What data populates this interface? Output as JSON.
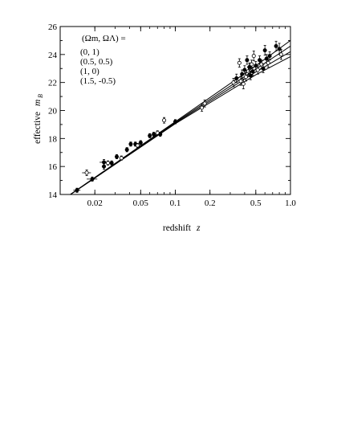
{
  "chart_data": {
    "type": "scatter",
    "title": "",
    "xlabel": "redshift",
    "xlabel_symbol": "z",
    "ylabel": "effective",
    "ylabel_symbol": "m",
    "ylabel_subscript": "B",
    "xscale": "log",
    "xlim": [
      0.01,
      1.0
    ],
    "ylim": [
      14,
      26
    ],
    "xticks": [
      {
        "value": 0.02,
        "label": "0.02"
      },
      {
        "value": 0.05,
        "label": "0.05"
      },
      {
        "value": 0.1,
        "label": "0.1"
      },
      {
        "value": 0.2,
        "label": "0.2"
      },
      {
        "value": 0.5,
        "label": "0.5"
      },
      {
        "value": 1.0,
        "label": "1.0"
      }
    ],
    "yticks": [
      {
        "value": 14,
        "label": "14"
      },
      {
        "value": 16,
        "label": "16"
      },
      {
        "value": 18,
        "label": "18"
      },
      {
        "value": 20,
        "label": "20"
      },
      {
        "value": 22,
        "label": "22"
      },
      {
        "value": 24,
        "label": "24"
      },
      {
        "value": 26,
        "label": "26"
      }
    ],
    "legend": {
      "position": "top-left",
      "header": "(Ωm, ΩΛ) =",
      "entries": [
        "(0, 1)",
        "(0.5, 0.5)",
        "(1, 0)",
        "(1.5, -0.5)"
      ]
    },
    "series": [
      {
        "values": [
          [
            0.01,
            13.5
          ],
          [
            0.1,
            19.2
          ],
          [
            0.5,
            23.2
          ],
          [
            1.0,
            25.0
          ]
        ]
      },
      {
        "values": [
          [
            0.01,
            13.5
          ],
          [
            0.1,
            19.15
          ],
          [
            0.5,
            22.95
          ],
          [
            1.0,
            24.6
          ]
        ]
      },
      {
        "values": [
          [
            0.01,
            13.5
          ],
          [
            0.1,
            19.1
          ],
          [
            0.5,
            22.75
          ],
          [
            1.0,
            24.2
          ]
        ]
      },
      {
        "values": [
          [
            0.01,
            13.5
          ],
          [
            0.1,
            19.05
          ],
          [
            0.5,
            22.55
          ],
          [
            1.0,
            23.85
          ]
        ]
      }
    ],
    "points": [
      {
        "x": 0.014,
        "y": 14.3,
        "xerr": 0.001,
        "yerr": 0.15,
        "open": false
      },
      {
        "x": 0.017,
        "y": 15.55,
        "xerr": 0.0015,
        "yerr": 0.2,
        "open": true
      },
      {
        "x": 0.019,
        "y": 15.1,
        "xerr": 0.002,
        "yerr": 0.15,
        "open": false
      },
      {
        "x": 0.024,
        "y": 16.0,
        "xerr": 0.001,
        "yerr": 0.2,
        "open": false
      },
      {
        "x": 0.024,
        "y": 16.3,
        "xerr": 0.002,
        "yerr": 0.2,
        "open": false
      },
      {
        "x": 0.026,
        "y": 16.25,
        "xerr": 0.001,
        "yerr": 0.15,
        "open": true
      },
      {
        "x": 0.028,
        "y": 16.25,
        "xerr": 0.001,
        "yerr": 0.15,
        "open": false
      },
      {
        "x": 0.031,
        "y": 16.7,
        "xerr": 0.001,
        "yerr": 0.15,
        "open": false
      },
      {
        "x": 0.034,
        "y": 16.6,
        "xerr": 0.001,
        "yerr": 0.15,
        "open": true
      },
      {
        "x": 0.038,
        "y": 17.2,
        "xerr": 0.001,
        "yerr": 0.15,
        "open": false
      },
      {
        "x": 0.041,
        "y": 17.6,
        "xerr": 0.001,
        "yerr": 0.15,
        "open": false
      },
      {
        "x": 0.045,
        "y": 17.6,
        "xerr": 0.001,
        "yerr": 0.15,
        "open": false
      },
      {
        "x": 0.047,
        "y": 17.5,
        "xerr": 0.001,
        "yerr": 0.15,
        "open": true
      },
      {
        "x": 0.05,
        "y": 17.7,
        "xerr": 0.001,
        "yerr": 0.15,
        "open": false
      },
      {
        "x": 0.06,
        "y": 18.2,
        "xerr": 0.001,
        "yerr": 0.15,
        "open": false
      },
      {
        "x": 0.065,
        "y": 18.3,
        "xerr": 0.001,
        "yerr": 0.15,
        "open": false
      },
      {
        "x": 0.07,
        "y": 18.4,
        "xerr": 0.001,
        "yerr": 0.15,
        "open": true
      },
      {
        "x": 0.074,
        "y": 18.3,
        "xerr": 0.001,
        "yerr": 0.15,
        "open": false
      },
      {
        "x": 0.08,
        "y": 19.3,
        "xerr": 0.002,
        "yerr": 0.2,
        "open": true
      },
      {
        "x": 0.1,
        "y": 19.2,
        "xerr": 0.001,
        "yerr": 0.15,
        "open": false
      },
      {
        "x": 0.17,
        "y": 20.2,
        "xerr": 0,
        "yerr": 0.25,
        "open": true
      },
      {
        "x": 0.18,
        "y": 20.5,
        "xerr": 0,
        "yerr": 0.25,
        "open": true
      },
      {
        "x": 0.32,
        "y": 22.0,
        "xerr": 0,
        "yerr": 0.3,
        "open": true
      },
      {
        "x": 0.34,
        "y": 22.3,
        "xerr": 0,
        "yerr": 0.3,
        "open": false
      },
      {
        "x": 0.36,
        "y": 23.4,
        "xerr": 0,
        "yerr": 0.3,
        "open": true
      },
      {
        "x": 0.37,
        "y": 22.1,
        "xerr": 0,
        "yerr": 0.3,
        "open": true
      },
      {
        "x": 0.38,
        "y": 22.6,
        "xerr": 0,
        "yerr": 0.3,
        "open": false
      },
      {
        "x": 0.39,
        "y": 21.9,
        "xerr": 0,
        "yerr": 0.35,
        "open": true
      },
      {
        "x": 0.4,
        "y": 22.9,
        "xerr": 0,
        "yerr": 0.3,
        "open": false
      },
      {
        "x": 0.41,
        "y": 22.4,
        "xerr": 0,
        "yerr": 0.3,
        "open": true
      },
      {
        "x": 0.42,
        "y": 23.6,
        "xerr": 0,
        "yerr": 0.3,
        "open": false
      },
      {
        "x": 0.43,
        "y": 22.8,
        "xerr": 0,
        "yerr": 0.3,
        "open": true
      },
      {
        "x": 0.44,
        "y": 23.1,
        "xerr": 0,
        "yerr": 0.3,
        "open": false
      },
      {
        "x": 0.45,
        "y": 22.5,
        "xerr": 0,
        "yerr": 0.3,
        "open": false
      },
      {
        "x": 0.46,
        "y": 23.3,
        "xerr": 0,
        "yerr": 0.3,
        "open": true
      },
      {
        "x": 0.47,
        "y": 22.8,
        "xerr": 0,
        "yerr": 0.3,
        "open": false
      },
      {
        "x": 0.48,
        "y": 23.9,
        "xerr": 0,
        "yerr": 0.35,
        "open": true
      },
      {
        "x": 0.5,
        "y": 23.2,
        "xerr": 0,
        "yerr": 0.3,
        "open": false
      },
      {
        "x": 0.52,
        "y": 22.9,
        "xerr": 0,
        "yerr": 0.3,
        "open": true
      },
      {
        "x": 0.54,
        "y": 23.6,
        "xerr": 0,
        "yerr": 0.3,
        "open": false
      },
      {
        "x": 0.56,
        "y": 23.3,
        "xerr": 0,
        "yerr": 0.3,
        "open": true
      },
      {
        "x": 0.58,
        "y": 23.0,
        "xerr": 0,
        "yerr": 0.3,
        "open": false
      },
      {
        "x": 0.6,
        "y": 24.3,
        "xerr": 0,
        "yerr": 0.35,
        "open": false
      },
      {
        "x": 0.62,
        "y": 23.7,
        "xerr": 0,
        "yerr": 0.3,
        "open": false
      },
      {
        "x": 0.64,
        "y": 23.4,
        "xerr": 0,
        "yerr": 0.3,
        "open": true
      },
      {
        "x": 0.66,
        "y": 23.9,
        "xerr": 0,
        "yerr": 0.3,
        "open": false
      },
      {
        "x": 0.75,
        "y": 24.6,
        "xerr": 0,
        "yerr": 0.35,
        "open": false
      },
      {
        "x": 0.8,
        "y": 24.4,
        "xerr": 0,
        "yerr": 0.4,
        "open": false
      },
      {
        "x": 0.83,
        "y": 24.0,
        "xerr": 0,
        "yerr": 0.35,
        "open": true
      }
    ]
  }
}
